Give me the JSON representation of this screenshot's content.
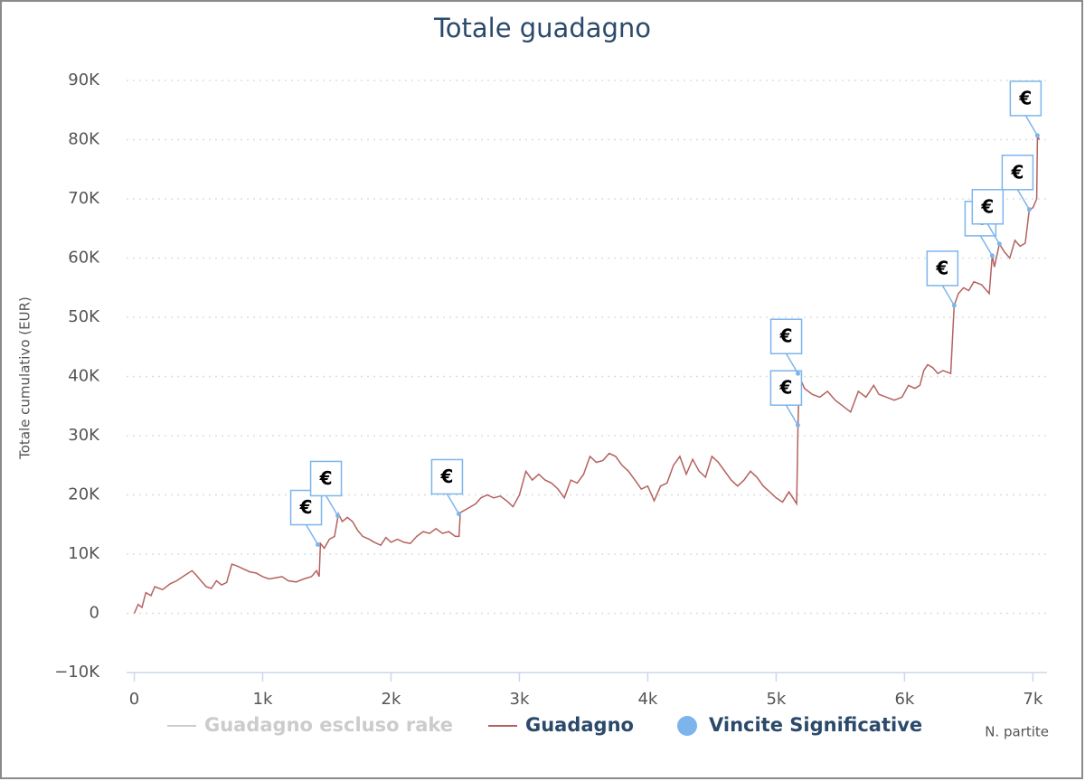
{
  "chart_data": {
    "type": "line",
    "title": "Totale guadagno",
    "y_label": "Totale cumulativo (EUR)",
    "x_label": "N. partite",
    "xlim": [
      -60,
      7110
    ],
    "xticks": [
      0,
      {
        "value": 1000,
        "label": "1k"
      },
      {
        "value": 2000,
        "label": "2k"
      },
      {
        "value": 3000,
        "label": "3k"
      },
      {
        "value": 4000,
        "label": "4k"
      },
      {
        "value": 5000,
        "label": "5k"
      },
      {
        "value": 6000,
        "label": "6k"
      },
      {
        "value": 7000,
        "label": "7k"
      }
    ],
    "ylim": [
      -10000,
      90000
    ],
    "yticks": [
      {
        "value": -10000,
        "label": "−10K"
      },
      0,
      {
        "value": 10000,
        "label": "10K"
      },
      {
        "value": 20000,
        "label": "20K"
      },
      {
        "value": 30000,
        "label": "30K"
      },
      {
        "value": 40000,
        "label": "40K"
      },
      {
        "value": 50000,
        "label": "50K"
      },
      {
        "value": 60000,
        "label": "60K"
      },
      {
        "value": 70000,
        "label": "70K"
      },
      {
        "value": 80000,
        "label": "80K"
      },
      {
        "value": 90000,
        "label": "90K"
      }
    ],
    "grid": true,
    "series": [
      {
        "name": "Guadagno escluso rake",
        "color": "#cccccc",
        "visible": false
      },
      {
        "name": "Guadagno",
        "color": "#b5615f",
        "x": [
          0,
          30,
          60,
          90,
          130,
          160,
          220,
          280,
          330,
          400,
          450,
          480,
          520,
          560,
          600,
          640,
          680,
          720,
          760,
          800,
          850,
          900,
          950,
          1000,
          1050,
          1100,
          1150,
          1200,
          1260,
          1320,
          1380,
          1420,
          1440,
          1450,
          1480,
          1520,
          1560,
          1590,
          1620,
          1660,
          1700,
          1740,
          1780,
          1830,
          1870,
          1920,
          1960,
          2000,
          2050,
          2100,
          2150,
          2200,
          2250,
          2300,
          2350,
          2400,
          2450,
          2500,
          2530,
          2540,
          2580,
          2620,
          2660,
          2700,
          2750,
          2800,
          2850,
          2900,
          2950,
          3000,
          3050,
          3100,
          3150,
          3200,
          3250,
          3300,
          3350,
          3400,
          3450,
          3500,
          3550,
          3600,
          3650,
          3700,
          3750,
          3800,
          3850,
          3900,
          3950,
          4000,
          4050,
          4100,
          4150,
          4200,
          4250,
          4300,
          4350,
          4400,
          4450,
          4500,
          4550,
          4600,
          4650,
          4700,
          4750,
          4800,
          4850,
          4900,
          4950,
          5000,
          5050,
          5100,
          5160,
          5170,
          5180,
          5220,
          5280,
          5340,
          5400,
          5460,
          5520,
          5580,
          5640,
          5700,
          5760,
          5800,
          5860,
          5920,
          5980,
          6030,
          6080,
          6120,
          6150,
          6180,
          6220,
          6260,
          6300,
          6360,
          6387,
          6420,
          6460,
          6500,
          6540,
          6600,
          6660,
          6683,
          6700,
          6739,
          6780,
          6820,
          6860,
          6900,
          6940,
          6972,
          7000,
          7030,
          7035,
          7050
        ],
        "values": [
          0,
          1500,
          1000,
          3500,
          3000,
          4500,
          4000,
          5000,
          5500,
          6500,
          7200,
          6500,
          5500,
          4500,
          4200,
          5500,
          4800,
          5200,
          8300,
          8000,
          7500,
          7000,
          6800,
          6200,
          5800,
          6000,
          6200,
          5500,
          5300,
          5800,
          6200,
          7200,
          6200,
          11800,
          11000,
          12500,
          13000,
          16800,
          15500,
          16200,
          15500,
          14000,
          13000,
          12500,
          12000,
          11500,
          12800,
          12000,
          12500,
          12000,
          11800,
          13000,
          13800,
          13500,
          14300,
          13500,
          13800,
          13000,
          13000,
          17000,
          17500,
          18000,
          18500,
          19500,
          20000,
          19500,
          19800,
          19000,
          18000,
          20000,
          24000,
          22500,
          23500,
          22500,
          22000,
          21000,
          19500,
          22500,
          22000,
          23500,
          26500,
          25500,
          25800,
          27000,
          26500,
          25000,
          24000,
          22500,
          21000,
          21500,
          19000,
          21500,
          22000,
          25000,
          26500,
          23500,
          26000,
          24000,
          23000,
          26500,
          25500,
          24000,
          22500,
          21500,
          22500,
          24000,
          23000,
          21500,
          20500,
          19500,
          18800,
          20500,
          18500,
          31800,
          40000,
          38000,
          37000,
          36500,
          37500,
          36000,
          35000,
          34000,
          37500,
          36500,
          38500,
          37000,
          36500,
          36000,
          36500,
          38500,
          38000,
          38500,
          41000,
          42000,
          41500,
          40500,
          41000,
          40500,
          52000,
          54000,
          55000,
          54500,
          56000,
          55500,
          54000,
          60400,
          58500,
          62400,
          61000,
          60000,
          63000,
          62000,
          62500,
          68200,
          68500,
          70000,
          80700,
          80000
        ]
      },
      {
        "name": "Vincite Significative",
        "color": "#7cb5ec",
        "marker_label": "€",
        "x": [
          1430,
          1585,
          2528,
          5169,
          5170,
          6387,
          6683,
          6739,
          6972,
          7035
        ],
        "values": [
          11600,
          16500,
          16800,
          31800,
          40500,
          52000,
          60400,
          62400,
          68200,
          80700
        ]
      }
    ]
  }
}
